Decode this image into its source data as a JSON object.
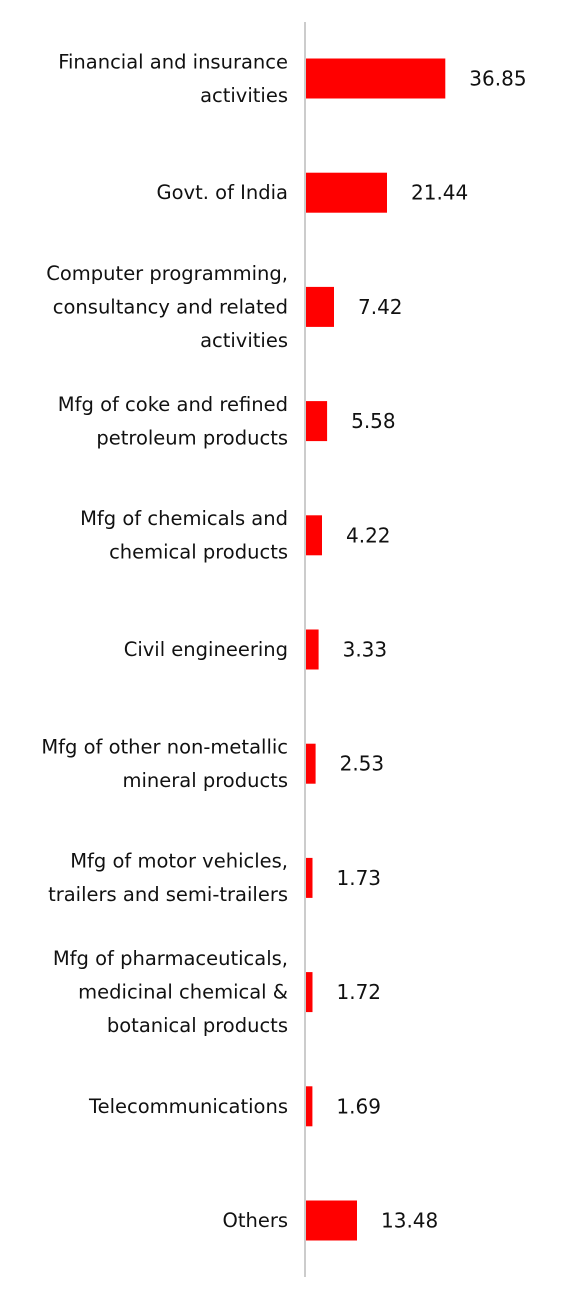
{
  "chart_data": {
    "type": "bar",
    "orientation": "horizontal",
    "bar_color": "#ff0000",
    "axis_color": "#cccccc",
    "grid": false,
    "legend": "none",
    "xlim": [
      0,
      37
    ],
    "categories": [
      [
        "Financial and insurance",
        "activities"
      ],
      [
        "Govt. of India"
      ],
      [
        "Computer programming,",
        "consultancy and related",
        "activities"
      ],
      [
        "Mfg of coke and refined",
        "petroleum products"
      ],
      [
        "Mfg of chemicals and",
        "chemical products"
      ],
      [
        "Civil engineering"
      ],
      [
        "Mfg of other non-metallic",
        "mineral products"
      ],
      [
        "Mfg of motor vehicles,",
        "trailers and semi-trailers"
      ],
      [
        "Mfg of pharmaceuticals,",
        "medicinal chemical &",
        "botanical products"
      ],
      [
        "Telecommunications"
      ],
      [
        "Others"
      ]
    ],
    "values": [
      36.85,
      21.44,
      7.42,
      5.58,
      4.22,
      3.33,
      2.53,
      1.73,
      1.72,
      1.69,
      13.48
    ],
    "value_labels": [
      "36.85",
      "21.44",
      "7.42",
      "5.58",
      "4.22",
      "3.33",
      "2.53",
      "1.73",
      "1.72",
      "1.69",
      "13.48"
    ]
  }
}
